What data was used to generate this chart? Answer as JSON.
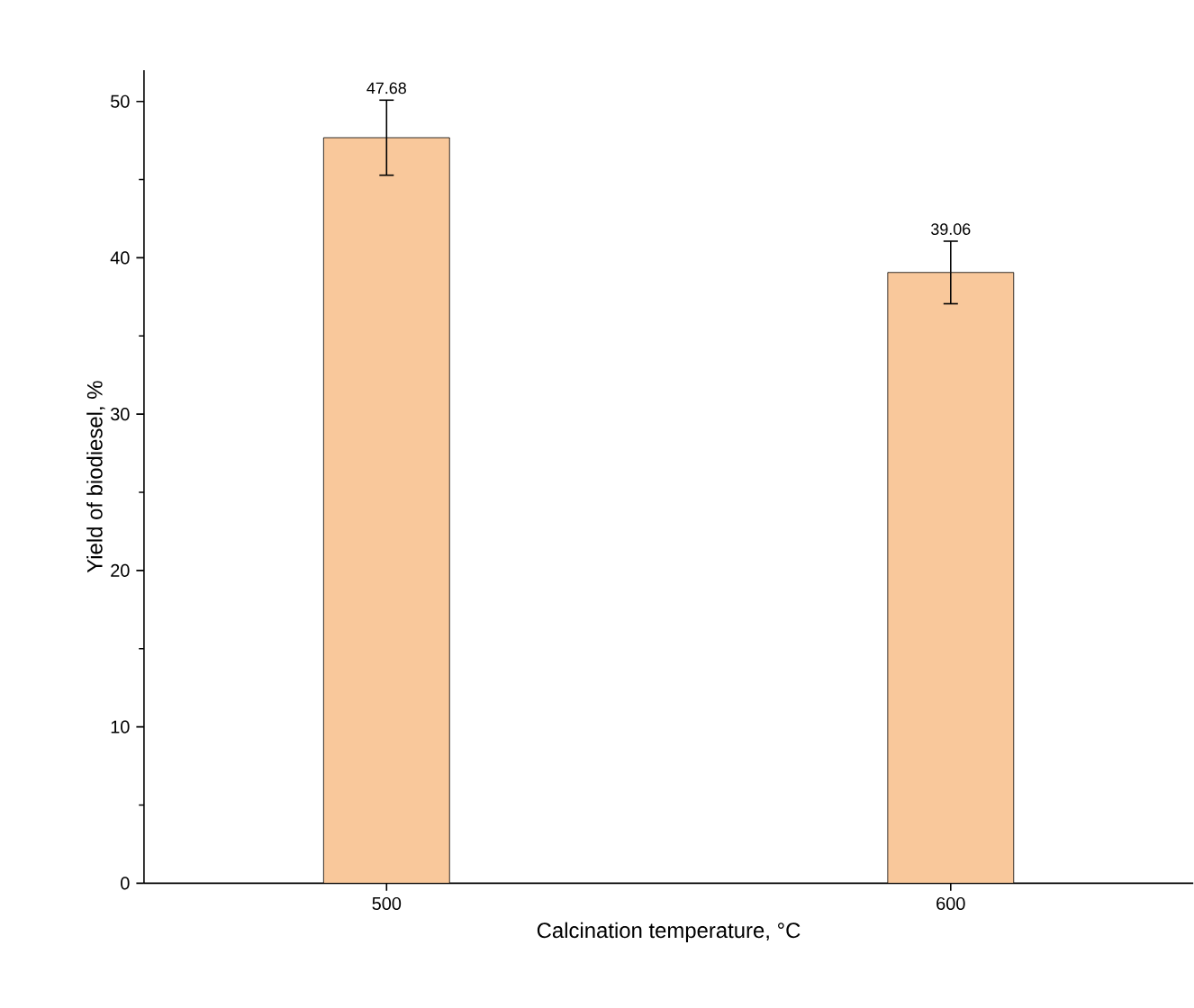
{
  "chart_data": {
    "type": "bar",
    "xlabel": "Calcination temperature, °C",
    "ylabel": "Yield of biodiesel, %",
    "categories": [
      "500",
      "600"
    ],
    "values": [
      47.68,
      39.06
    ],
    "errors": [
      2.4,
      2.0
    ],
    "color": "#f9c89b",
    "data_labels": true,
    "ylim": [
      0,
      52
    ],
    "yticks": [
      0,
      10,
      20,
      30,
      40,
      50
    ],
    "grid": false
  }
}
